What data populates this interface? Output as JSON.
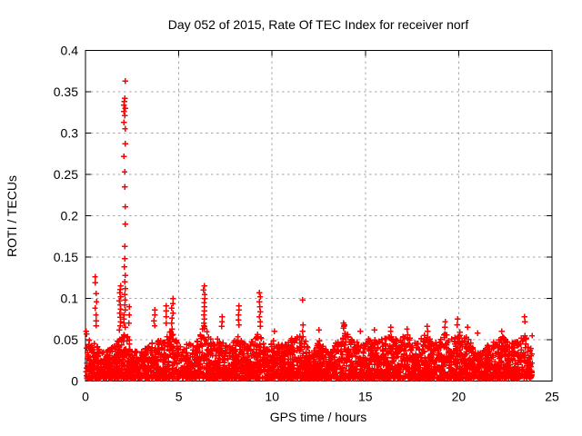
{
  "chart_data": {
    "type": "scatter",
    "title": "Day 052 of 2015, Rate Of TEC Index for receiver norf",
    "xlabel": "GPS time / hours",
    "ylabel": "ROTI / TECUs",
    "xlim": [
      0,
      25
    ],
    "ylim": [
      0,
      0.4
    ],
    "xtick_values": [
      0,
      5,
      10,
      15,
      20,
      25
    ],
    "xtick_labels": [
      "0",
      "5",
      "10",
      "15",
      "20",
      "25"
    ],
    "ytick_values": [
      0,
      0.05,
      0.1,
      0.15,
      0.2,
      0.25,
      0.3,
      0.35,
      0.4
    ],
    "ytick_labels": [
      "0",
      "0.05",
      "0.1",
      "0.15",
      "0.2",
      "0.25",
      "0.3",
      "0.35",
      "0.4"
    ],
    "grid": "dashed at major ticks, both axes",
    "grid_color": "#a6a6a6",
    "frame_color": "#000000",
    "marker": "plus",
    "marker_color": "#ff0000",
    "legend": "none",
    "x_data_range": [
      0.02,
      23.93
    ],
    "baseline_band": {
      "description": "dense noise band of + markers from ~0.003 TECUs up to a varying envelope",
      "y_min": 0.003,
      "n_points": 3900,
      "seed": 20150052,
      "envelope_keypoints": [
        [
          0.0,
          0.062
        ],
        [
          0.3,
          0.05
        ],
        [
          0.7,
          0.04
        ],
        [
          1.0,
          0.035
        ],
        [
          1.5,
          0.042
        ],
        [
          1.9,
          0.055
        ],
        [
          2.15,
          0.06
        ],
        [
          2.5,
          0.042
        ],
        [
          3.0,
          0.036
        ],
        [
          3.5,
          0.045
        ],
        [
          3.8,
          0.05
        ],
        [
          4.2,
          0.048
        ],
        [
          4.65,
          0.065
        ],
        [
          5.0,
          0.042
        ],
        [
          5.5,
          0.045
        ],
        [
          6.0,
          0.05
        ],
        [
          6.35,
          0.068
        ],
        [
          6.8,
          0.048
        ],
        [
          7.3,
          0.055
        ],
        [
          7.7,
          0.042
        ],
        [
          8.2,
          0.055
        ],
        [
          8.7,
          0.042
        ],
        [
          9.3,
          0.06
        ],
        [
          9.8,
          0.045
        ],
        [
          10.1,
          0.05
        ],
        [
          10.45,
          0.042
        ],
        [
          10.8,
          0.052
        ],
        [
          11.2,
          0.055
        ],
        [
          11.7,
          0.056
        ],
        [
          12.1,
          0.03
        ],
        [
          12.5,
          0.05
        ],
        [
          13.1,
          0.032
        ],
        [
          13.5,
          0.05
        ],
        [
          13.85,
          0.062
        ],
        [
          14.3,
          0.05
        ],
        [
          14.8,
          0.045
        ],
        [
          15.3,
          0.055
        ],
        [
          15.8,
          0.05
        ],
        [
          16.3,
          0.055
        ],
        [
          16.8,
          0.05
        ],
        [
          17.2,
          0.058
        ],
        [
          17.7,
          0.045
        ],
        [
          18.2,
          0.058
        ],
        [
          18.7,
          0.045
        ],
        [
          19.2,
          0.06
        ],
        [
          19.6,
          0.05
        ],
        [
          19.95,
          0.062
        ],
        [
          20.4,
          0.055
        ],
        [
          20.8,
          0.042
        ],
        [
          21.2,
          0.035
        ],
        [
          21.6,
          0.045
        ],
        [
          22.0,
          0.05
        ],
        [
          22.4,
          0.055
        ],
        [
          22.8,
          0.045
        ],
        [
          23.2,
          0.05
        ],
        [
          23.6,
          0.058
        ],
        [
          23.93,
          0.055
        ]
      ]
    },
    "spikes": [
      {
        "x": 0.55,
        "values": [
          0.126,
          0.119,
          0.106,
          0.096,
          0.088,
          0.08,
          0.073,
          0.067
        ]
      },
      {
        "x": 1.85,
        "values": [
          0.115,
          0.111,
          0.107,
          0.102,
          0.097,
          0.092,
          0.087,
          0.082,
          0.077,
          0.072,
          0.067,
          0.062
        ]
      },
      {
        "x": 2.1,
        "values": [
          0.363,
          0.342,
          0.338,
          0.334,
          0.33,
          0.326,
          0.321,
          0.313,
          0.305,
          0.287,
          0.272,
          0.253,
          0.235,
          0.211,
          0.19,
          0.163,
          0.148,
          0.138,
          0.128,
          0.12,
          0.112,
          0.105,
          0.098,
          0.092,
          0.086,
          0.08,
          0.075,
          0.07,
          0.065
        ]
      },
      {
        "x": 2.3,
        "values": [
          0.09,
          0.08,
          0.07
        ]
      },
      {
        "x": 3.7,
        "values": [
          0.086,
          0.08,
          0.073,
          0.067
        ]
      },
      {
        "x": 4.3,
        "values": [
          0.091,
          0.085,
          0.078,
          0.07
        ]
      },
      {
        "x": 4.65,
        "values": [
          0.1,
          0.094,
          0.088,
          0.082,
          0.076,
          0.07
        ]
      },
      {
        "x": 6.35,
        "values": [
          0.115,
          0.11,
          0.105,
          0.1,
          0.095,
          0.09,
          0.085,
          0.08,
          0.075,
          0.07
        ]
      },
      {
        "x": 7.3,
        "values": [
          0.078,
          0.072,
          0.066
        ]
      },
      {
        "x": 8.2,
        "values": [
          0.091,
          0.086,
          0.08,
          0.074,
          0.068
        ]
      },
      {
        "x": 9.35,
        "values": [
          0.107,
          0.102,
          0.096,
          0.09,
          0.084,
          0.078,
          0.072,
          0.066
        ]
      },
      {
        "x": 10.15,
        "values": [
          0.06
        ]
      },
      {
        "x": 11.64,
        "values": [
          0.098,
          0.068,
          0.06
        ]
      },
      {
        "x": 12.55,
        "values": [
          0.062
        ]
      },
      {
        "x": 13.85,
        "values": [
          0.07,
          0.068,
          0.066,
          0.064
        ]
      },
      {
        "x": 14.7,
        "values": [
          0.06
        ]
      },
      {
        "x": 15.45,
        "values": [
          0.062
        ]
      },
      {
        "x": 16.35,
        "values": [
          0.065,
          0.06
        ]
      },
      {
        "x": 17.2,
        "values": [
          0.063
        ]
      },
      {
        "x": 18.3,
        "values": [
          0.066,
          0.06
        ]
      },
      {
        "x": 19.25,
        "values": [
          0.072,
          0.065
        ]
      },
      {
        "x": 19.95,
        "values": [
          0.075,
          0.068
        ]
      },
      {
        "x": 20.5,
        "values": [
          0.065
        ]
      },
      {
        "x": 21.0,
        "values": [
          0.058
        ]
      },
      {
        "x": 22.35,
        "values": [
          0.06
        ]
      },
      {
        "x": 23.52,
        "values": [
          0.078,
          0.072
        ]
      }
    ]
  }
}
